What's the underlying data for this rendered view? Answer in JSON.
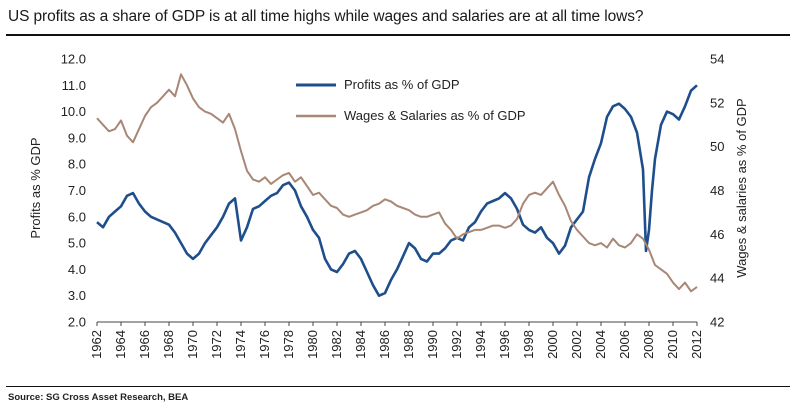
{
  "chart_data": {
    "type": "line",
    "title": "US profits as a share of GDP is at all time highs while wages and salaries are at all time lows?",
    "source": "Source: SG Cross Asset Research, BEA",
    "xlabel": "",
    "ylabel_left": "Profits as % GDP",
    "ylabel_right": "Wages & salaries as % of GDP",
    "xlim": [
      1962,
      2012
    ],
    "ylim_left": [
      2.0,
      12.0
    ],
    "ylim_right": [
      42,
      54
    ],
    "x_ticks": [
      "1962",
      "1964",
      "1966",
      "1968",
      "1970",
      "1972",
      "1974",
      "1976",
      "1978",
      "1980",
      "1982",
      "1984",
      "1986",
      "1988",
      "1990",
      "1992",
      "1994",
      "1996",
      "1998",
      "2000",
      "2002",
      "2004",
      "2006",
      "2008",
      "2010",
      "2012"
    ],
    "y_ticks_left": [
      "2.0",
      "3.0",
      "4.0",
      "5.0",
      "6.0",
      "7.0",
      "8.0",
      "9.0",
      "10.0",
      "11.0",
      "12.0"
    ],
    "y_ticks_right": [
      "42",
      "44",
      "46",
      "48",
      "50",
      "52",
      "54"
    ],
    "legend_position": "top-center",
    "grid": false,
    "series": [
      {
        "name": "Profits as % of GDP",
        "axis": "left",
        "color": "#1f4e8c",
        "x": [
          1962,
          1962.5,
          1963,
          1963.5,
          1964,
          1964.5,
          1965,
          1965.5,
          1966,
          1966.5,
          1967,
          1967.5,
          1968,
          1968.5,
          1969,
          1969.5,
          1970,
          1970.5,
          1971,
          1971.5,
          1972,
          1972.5,
          1973,
          1973.5,
          1974,
          1974.5,
          1975,
          1975.5,
          1976,
          1976.5,
          1977,
          1977.5,
          1978,
          1978.5,
          1979,
          1979.5,
          1980,
          1980.5,
          1981,
          1981.5,
          1982,
          1982.5,
          1983,
          1983.5,
          1984,
          1984.5,
          1985,
          1985.5,
          1986,
          1986.5,
          1987,
          1987.5,
          1988,
          1988.5,
          1989,
          1989.5,
          1990,
          1990.5,
          1991,
          1991.5,
          1992,
          1992.5,
          1993,
          1993.5,
          1994,
          1994.5,
          1995,
          1995.5,
          1996,
          1996.5,
          1997,
          1997.5,
          1998,
          1998.5,
          1999,
          1999.5,
          2000,
          2000.5,
          2001,
          2001.5,
          2002,
          2002.5,
          2003,
          2003.5,
          2004,
          2004.5,
          2005,
          2005.5,
          2006,
          2006.5,
          2007,
          2007.5,
          2007.75,
          2008,
          2008.25,
          2008.5,
          2009,
          2009.5,
          2010,
          2010.5,
          2011,
          2011.5,
          2012
        ],
        "values": [
          5.8,
          5.6,
          6.0,
          6.2,
          6.4,
          6.8,
          6.9,
          6.5,
          6.2,
          6.0,
          5.9,
          5.8,
          5.7,
          5.4,
          5.0,
          4.6,
          4.4,
          4.6,
          5.0,
          5.3,
          5.6,
          6.0,
          6.5,
          6.7,
          5.1,
          5.6,
          6.3,
          6.4,
          6.6,
          6.8,
          6.9,
          7.2,
          7.3,
          7.0,
          6.4,
          6.0,
          5.5,
          5.2,
          4.4,
          4.0,
          3.9,
          4.2,
          4.6,
          4.7,
          4.4,
          3.9,
          3.4,
          3.0,
          3.1,
          3.6,
          4.0,
          4.5,
          5.0,
          4.8,
          4.4,
          4.3,
          4.6,
          4.6,
          4.8,
          5.1,
          5.2,
          5.1,
          5.6,
          5.8,
          6.2,
          6.5,
          6.6,
          6.7,
          6.9,
          6.7,
          6.3,
          5.7,
          5.5,
          5.4,
          5.6,
          5.2,
          5.0,
          4.6,
          4.9,
          5.6,
          5.9,
          6.2,
          7.5,
          8.2,
          8.8,
          9.8,
          10.2,
          10.3,
          10.1,
          9.8,
          9.2,
          7.8,
          4.7,
          5.5,
          7.0,
          8.2,
          9.5,
          10.0,
          9.9,
          9.7,
          10.2,
          10.8,
          11.0
        ]
      },
      {
        "name": "Wages & Salaries as % of GDP",
        "axis": "right",
        "color": "#a98776",
        "x": [
          1962,
          1962.5,
          1963,
          1963.5,
          1964,
          1964.5,
          1965,
          1965.5,
          1966,
          1966.5,
          1967,
          1967.5,
          1968,
          1968.5,
          1969,
          1969.5,
          1970,
          1970.5,
          1971,
          1971.5,
          1972,
          1972.5,
          1973,
          1973.5,
          1974,
          1974.5,
          1975,
          1975.5,
          1976,
          1976.5,
          1977,
          1977.5,
          1978,
          1978.5,
          1979,
          1979.5,
          1980,
          1980.5,
          1981,
          1981.5,
          1982,
          1982.5,
          1983,
          1983.5,
          1984,
          1984.5,
          1985,
          1985.5,
          1986,
          1986.5,
          1987,
          1987.5,
          1988,
          1988.5,
          1989,
          1989.5,
          1990,
          1990.5,
          1991,
          1991.5,
          1992,
          1992.5,
          1993,
          1993.5,
          1994,
          1994.5,
          1995,
          1995.5,
          1996,
          1996.5,
          1997,
          1997.5,
          1998,
          1998.5,
          1999,
          1999.5,
          2000,
          2000.5,
          2001,
          2001.5,
          2002,
          2002.5,
          2003,
          2003.5,
          2004,
          2004.5,
          2005,
          2005.5,
          2006,
          2006.5,
          2007,
          2007.5,
          2008,
          2008.5,
          2009,
          2009.5,
          2010,
          2010.5,
          2011,
          2011.5,
          2012
        ],
        "values": [
          51.3,
          51.0,
          50.7,
          50.8,
          51.2,
          50.5,
          50.2,
          50.8,
          51.4,
          51.8,
          52.0,
          52.3,
          52.6,
          52.3,
          53.3,
          52.8,
          52.2,
          51.8,
          51.6,
          51.5,
          51.3,
          51.1,
          51.5,
          50.8,
          49.8,
          48.9,
          48.5,
          48.4,
          48.6,
          48.3,
          48.5,
          48.7,
          48.8,
          48.4,
          48.6,
          48.2,
          47.8,
          47.9,
          47.6,
          47.3,
          47.2,
          46.9,
          46.8,
          46.9,
          47.0,
          47.1,
          47.3,
          47.4,
          47.6,
          47.5,
          47.3,
          47.2,
          47.1,
          46.9,
          46.8,
          46.8,
          46.9,
          47.0,
          46.5,
          46.2,
          45.8,
          46.0,
          46.1,
          46.2,
          46.2,
          46.3,
          46.4,
          46.4,
          46.3,
          46.4,
          46.7,
          47.4,
          47.8,
          47.9,
          47.8,
          48.1,
          48.4,
          47.8,
          47.3,
          46.6,
          46.2,
          45.9,
          45.6,
          45.5,
          45.6,
          45.4,
          45.8,
          45.5,
          45.4,
          45.6,
          46.0,
          45.8,
          45.3,
          44.6,
          44.4,
          44.2,
          43.8,
          43.5,
          43.8,
          43.4,
          43.6
        ]
      }
    ]
  }
}
